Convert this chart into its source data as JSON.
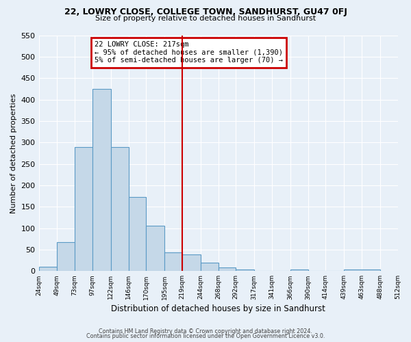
{
  "title": "22, LOWRY CLOSE, COLLEGE TOWN, SANDHURST, GU47 0FJ",
  "subtitle": "Size of property relative to detached houses in Sandhurst",
  "xlabel": "Distribution of detached houses by size in Sandhurst",
  "ylabel": "Number of detached properties",
  "bar_values": [
    10,
    68,
    290,
    425,
    290,
    173,
    105,
    44,
    38,
    20,
    8,
    3,
    0,
    0,
    4,
    0,
    0,
    3
  ],
  "bin_left_edges": [
    24,
    49,
    73,
    97,
    122,
    146,
    170,
    195,
    219,
    244,
    268,
    292,
    317,
    341,
    366,
    390,
    414,
    439
  ],
  "bin_right_edges": [
    49,
    73,
    97,
    122,
    146,
    170,
    195,
    219,
    244,
    268,
    292,
    317,
    341,
    366,
    390,
    414,
    439,
    488
  ],
  "tick_positions": [
    24,
    49,
    73,
    97,
    122,
    146,
    170,
    195,
    219,
    244,
    268,
    292,
    317,
    341,
    366,
    390,
    414,
    439,
    463,
    488,
    512
  ],
  "tick_labels": [
    "24sqm",
    "49sqm",
    "73sqm",
    "97sqm",
    "122sqm",
    "146sqm",
    "170sqm",
    "195sqm",
    "219sqm",
    "244sqm",
    "268sqm",
    "292sqm",
    "317sqm",
    "341sqm",
    "366sqm",
    "390sqm",
    "414sqm",
    "439sqm",
    "463sqm",
    "488sqm",
    "512sqm"
  ],
  "bar_color": "#c5d8e8",
  "bar_edge_color": "#5a9ac5",
  "vline_x": 219,
  "vline_color": "#cc0000",
  "annotation_title": "22 LOWRY CLOSE: 217sqm",
  "annotation_line1": "← 95% of detached houses are smaller (1,390)",
  "annotation_line2": "5% of semi-detached houses are larger (70) →",
  "annotation_box_edgecolor": "#cc0000",
  "ylim": [
    0,
    550
  ],
  "yticks": [
    0,
    50,
    100,
    150,
    200,
    250,
    300,
    350,
    400,
    450,
    500,
    550
  ],
  "bg_color": "#e8f0f8",
  "footer1": "Contains HM Land Registry data © Crown copyright and database right 2024.",
  "footer2": "Contains public sector information licensed under the Open Government Licence v3.0.",
  "figsize": [
    6.0,
    5.0
  ],
  "dpi": 100
}
